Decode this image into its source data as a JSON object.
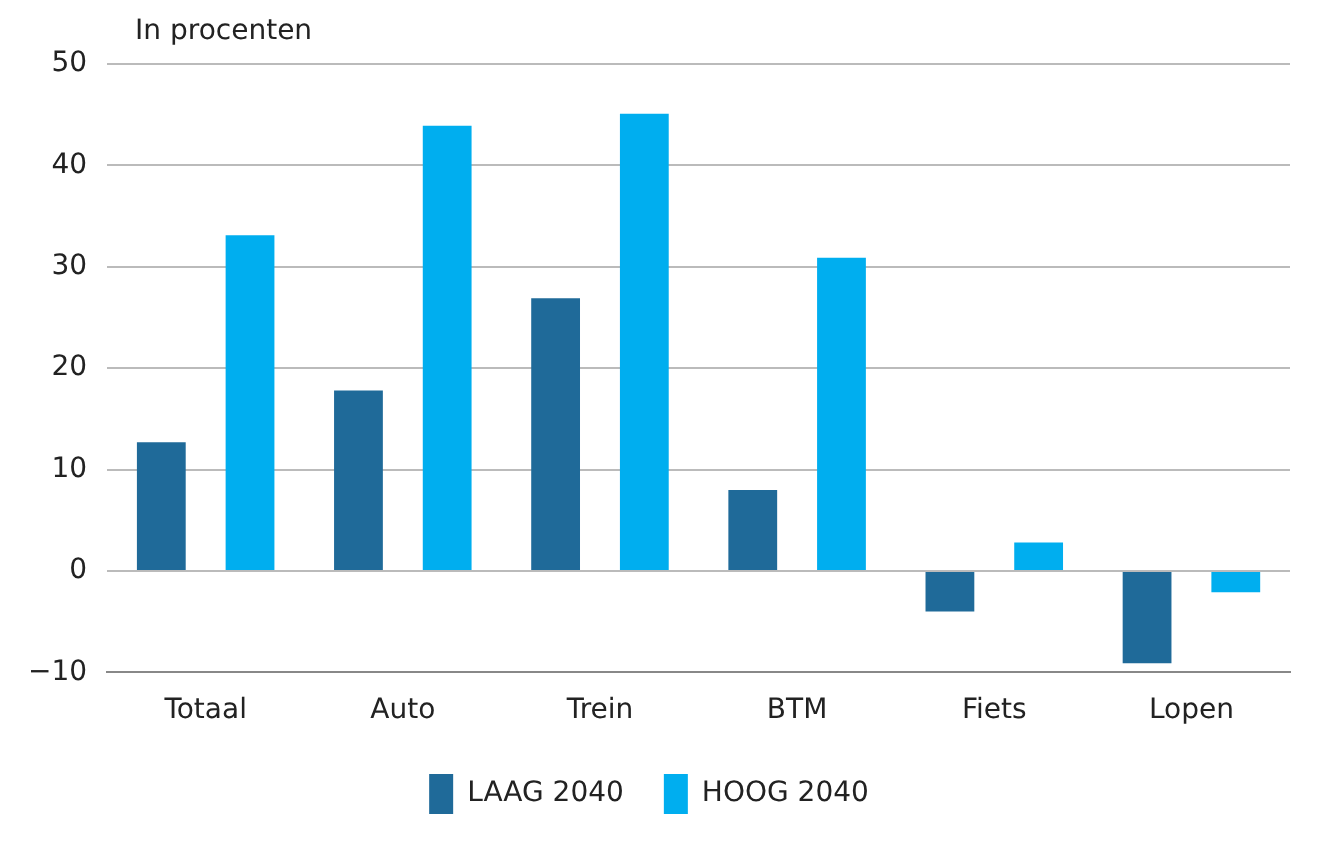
{
  "chart_data": {
    "type": "bar",
    "ylabel": "In procenten",
    "categories": [
      "Totaal",
      "Auto",
      "Trein",
      "BTM",
      "Fiets",
      "Lopen"
    ],
    "series": [
      {
        "name": "LAAG 2040",
        "color": "#1f6a99",
        "values": [
          12.7,
          17.8,
          26.9,
          8.0,
          -4.0,
          -9.1
        ]
      },
      {
        "name": "HOOG 2040",
        "color": "#00aeef",
        "values": [
          33.1,
          43.9,
          45.1,
          30.9,
          2.8,
          -2.1
        ]
      }
    ],
    "ylim": [
      -10,
      50
    ],
    "yticks": [
      {
        "value": -10,
        "label": "−10"
      },
      0,
      10,
      20,
      30,
      40,
      50
    ],
    "grid": "y",
    "legend": "bottom"
  }
}
